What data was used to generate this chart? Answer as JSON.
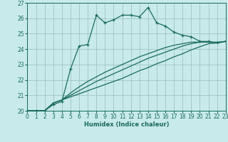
{
  "title": "",
  "xlabel": "Humidex (Indice chaleur)",
  "ylabel": "",
  "bg_color": "#c8eaea",
  "grid_color": "#99bbbb",
  "line_color": "#1a6b5a",
  "xlim": [
    0,
    23
  ],
  "ylim": [
    20,
    27
  ],
  "yticks": [
    20,
    21,
    22,
    23,
    24,
    25,
    26,
    27
  ],
  "xticks": [
    0,
    1,
    2,
    3,
    4,
    5,
    6,
    7,
    8,
    9,
    10,
    11,
    12,
    13,
    14,
    15,
    16,
    17,
    18,
    19,
    20,
    21,
    22,
    23
  ],
  "series_main": [
    [
      0,
      20.0
    ],
    [
      1,
      20.0
    ],
    [
      2,
      20.0
    ],
    [
      3,
      20.4
    ],
    [
      4,
      20.6
    ],
    [
      5,
      22.7
    ],
    [
      6,
      24.2
    ],
    [
      7,
      24.3
    ],
    [
      8,
      26.2
    ],
    [
      9,
      25.7
    ],
    [
      10,
      25.9
    ],
    [
      11,
      26.2
    ],
    [
      12,
      26.2
    ],
    [
      13,
      26.1
    ],
    [
      14,
      26.7
    ],
    [
      15,
      25.7
    ],
    [
      16,
      25.5
    ],
    [
      17,
      25.1
    ],
    [
      18,
      24.9
    ],
    [
      19,
      24.8
    ],
    [
      20,
      24.5
    ],
    [
      21,
      24.5
    ],
    [
      22,
      24.4
    ],
    [
      23,
      24.5
    ]
  ],
  "series2": [
    [
      0,
      20.0
    ],
    [
      1,
      20.0
    ],
    [
      2,
      20.0
    ],
    [
      3,
      20.5
    ],
    [
      4,
      20.7
    ],
    [
      5,
      20.9
    ],
    [
      6,
      21.1
    ],
    [
      7,
      21.3
    ],
    [
      8,
      21.5
    ],
    [
      9,
      21.7
    ],
    [
      10,
      21.9
    ],
    [
      11,
      22.1
    ],
    [
      12,
      22.35
    ],
    [
      13,
      22.6
    ],
    [
      14,
      22.8
    ],
    [
      15,
      23.05
    ],
    [
      16,
      23.25
    ],
    [
      17,
      23.5
    ],
    [
      18,
      23.7
    ],
    [
      19,
      23.95
    ],
    [
      20,
      24.15
    ],
    [
      21,
      24.35
    ],
    [
      22,
      24.4
    ],
    [
      23,
      24.5
    ]
  ],
  "series3": [
    [
      0,
      20.0
    ],
    [
      1,
      20.0
    ],
    [
      2,
      20.0
    ],
    [
      3,
      20.5
    ],
    [
      4,
      20.7
    ],
    [
      5,
      21.0
    ],
    [
      6,
      21.3
    ],
    [
      7,
      21.6
    ],
    [
      8,
      21.9
    ],
    [
      9,
      22.15
    ],
    [
      10,
      22.4
    ],
    [
      11,
      22.65
    ],
    [
      12,
      22.9
    ],
    [
      13,
      23.15
    ],
    [
      14,
      23.4
    ],
    [
      15,
      23.6
    ],
    [
      16,
      23.8
    ],
    [
      17,
      24.0
    ],
    [
      18,
      24.2
    ],
    [
      19,
      24.35
    ],
    [
      20,
      24.45
    ],
    [
      21,
      24.45
    ],
    [
      22,
      24.4
    ],
    [
      23,
      24.5
    ]
  ],
  "series4": [
    [
      0,
      20.0
    ],
    [
      1,
      20.0
    ],
    [
      2,
      20.0
    ],
    [
      3,
      20.5
    ],
    [
      4,
      20.7
    ],
    [
      5,
      21.15
    ],
    [
      6,
      21.55
    ],
    [
      7,
      21.9
    ],
    [
      8,
      22.2
    ],
    [
      9,
      22.5
    ],
    [
      10,
      22.75
    ],
    [
      11,
      23.0
    ],
    [
      12,
      23.25
    ],
    [
      13,
      23.5
    ],
    [
      14,
      23.7
    ],
    [
      15,
      23.9
    ],
    [
      16,
      24.1
    ],
    [
      17,
      24.25
    ],
    [
      18,
      24.35
    ],
    [
      19,
      24.45
    ],
    [
      20,
      24.45
    ],
    [
      21,
      24.45
    ],
    [
      22,
      24.45
    ],
    [
      23,
      24.5
    ]
  ]
}
